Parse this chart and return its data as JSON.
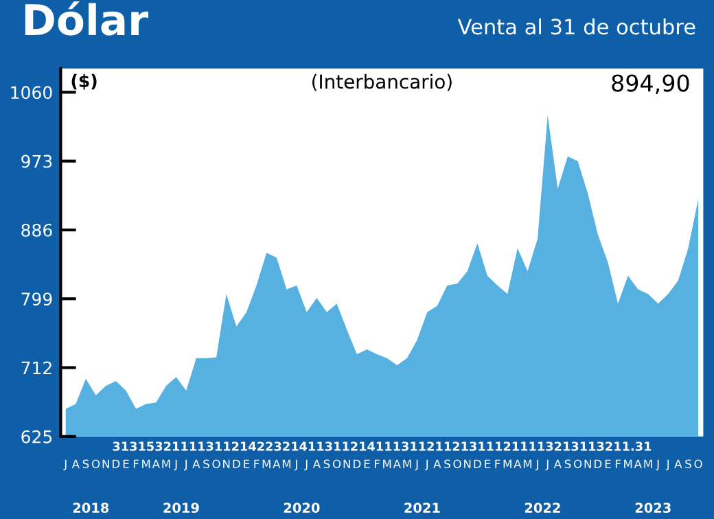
{
  "chart_data": {
    "type": "area",
    "title": "Dólar",
    "subtitle": "Venta al 31 de octubre",
    "ylabel": "(Interbancario)",
    "categories": [
      "J",
      "A",
      "S",
      "O",
      "N",
      "D",
      "E",
      "F",
      "M",
      "A",
      "M",
      "J",
      "J",
      "A",
      "S",
      "O",
      "N",
      "D",
      "E",
      "F",
      "M",
      "A",
      "M",
      "J",
      "J",
      "A",
      "S",
      "O",
      "N",
      "D",
      "E",
      "F",
      "M",
      "A",
      "M",
      "J",
      "J",
      "A",
      "S",
      "O",
      "N",
      "D",
      "E",
      "F",
      "M",
      "A",
      "M",
      "J",
      "J",
      "A",
      "S",
      "O",
      "N",
      "D",
      "E",
      "F",
      "M",
      "A",
      "M",
      "J",
      "J",
      "A",
      "S",
      "O"
    ],
    "series": [
      {
        "color": "#56b1e0",
        "values": [
          660,
          666,
          698,
          677,
          689,
          695,
          683,
          660,
          666,
          668,
          689,
          700,
          683,
          724,
          724,
          725,
          805,
          764,
          782,
          816,
          857,
          851,
          811,
          816,
          782,
          800,
          782,
          793,
          760,
          729,
          735,
          729,
          724,
          715,
          724,
          747,
          782,
          790,
          816,
          818,
          834,
          869,
          828,
          816,
          805,
          863,
          834,
          875,
          1031,
          938,
          979,
          973,
          932,
          880,
          845,
          793,
          828,
          811,
          805,
          793,
          805,
          822,
          863,
          925
        ]
      }
    ],
    "ylim": [
      625,
      1090
    ],
    "yticks": [
      625,
      712,
      799,
      886,
      973,
      1060
    ],
    "grid": false,
    "legend": false,
    "annotations": [
      "3131532111131121422321411311214111311211213111211113213113211.31",
      "($)",
      "894,90",
      "2018",
      "2019",
      "2020",
      "2021",
      "2022",
      "2023"
    ]
  }
}
